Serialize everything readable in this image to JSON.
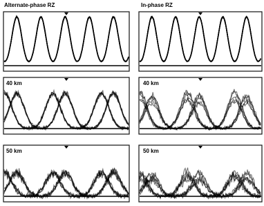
{
  "titles": [
    "Alternate-phase RZ",
    "In-phase RZ"
  ],
  "row_labels": [
    [
      "40 km",
      "40 km"
    ],
    [
      "50 km",
      "50 km"
    ]
  ]
}
